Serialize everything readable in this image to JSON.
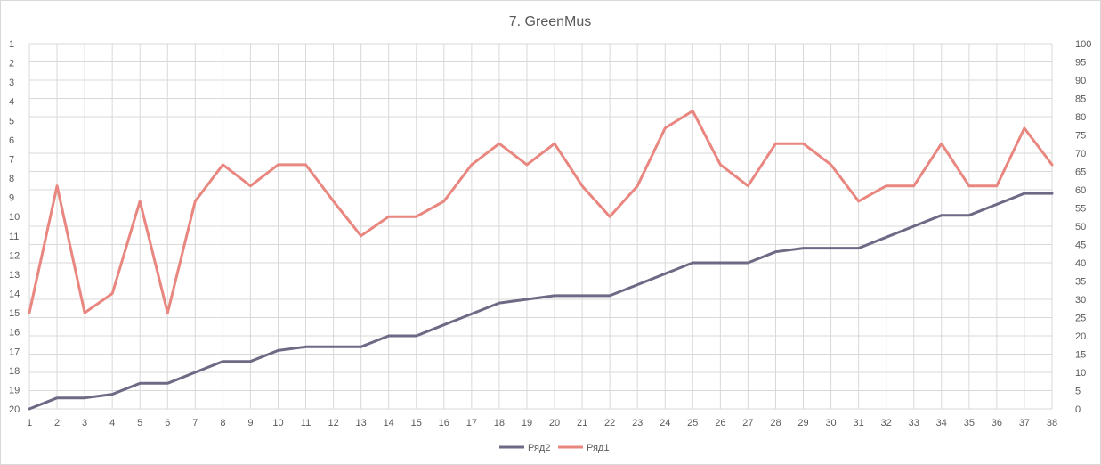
{
  "chart_data": {
    "type": "line",
    "title": "7. GreenMus",
    "x": [
      "1",
      "2",
      "3",
      "4",
      "5",
      "6",
      "7",
      "8",
      "9",
      "10",
      "11",
      "12",
      "13",
      "14",
      "15",
      "16",
      "17",
      "18",
      "19",
      "20",
      "21",
      "22",
      "23",
      "24",
      "25",
      "26",
      "27",
      "28",
      "29",
      "30",
      "31",
      "32",
      "33",
      "34",
      "35",
      "36",
      "37",
      "38"
    ],
    "y_left": {
      "ticks": [
        "1",
        "2",
        "3",
        "4",
        "5",
        "6",
        "7",
        "8",
        "9",
        "10",
        "11",
        "12",
        "13",
        "14",
        "15",
        "16",
        "17",
        "18",
        "19",
        "20"
      ],
      "range": [
        1,
        20
      ],
      "reversed": true
    },
    "y_right": {
      "ticks": [
        "0",
        "5",
        "10",
        "15",
        "20",
        "25",
        "30",
        "35",
        "40",
        "45",
        "50",
        "55",
        "60",
        "65",
        "70",
        "75",
        "80",
        "85",
        "90",
        "95",
        "100"
      ],
      "range": [
        0,
        100
      ]
    },
    "series": [
      {
        "name": "Ряд2",
        "color": "#6E6A85",
        "axis": "right",
        "values": [
          0,
          3,
          3,
          4,
          7,
          7,
          10,
          13,
          13,
          16,
          17,
          17,
          17,
          20,
          20,
          23,
          26,
          29,
          30,
          31,
          31,
          31,
          34,
          37,
          40,
          40,
          40,
          43,
          44,
          44,
          44,
          47,
          50,
          53,
          53,
          56,
          59,
          59
        ]
      },
      {
        "name": "Ряд1",
        "color": "#E8867F",
        "axis": "left",
        "values": [
          15,
          8.4,
          15,
          14,
          9.2,
          15,
          9.2,
          7.3,
          8.4,
          7.3,
          7.3,
          9.2,
          11,
          10,
          10,
          9.2,
          7.3,
          6.2,
          7.3,
          6.2,
          8.4,
          10,
          8.4,
          5.4,
          4.5,
          7.3,
          8.4,
          6.2,
          6.2,
          7.3,
          9.2,
          8.4,
          8.4,
          6.2,
          8.4,
          8.4,
          5.4,
          7.3
        ]
      }
    ],
    "grid": true,
    "legend_position": "bottom"
  }
}
